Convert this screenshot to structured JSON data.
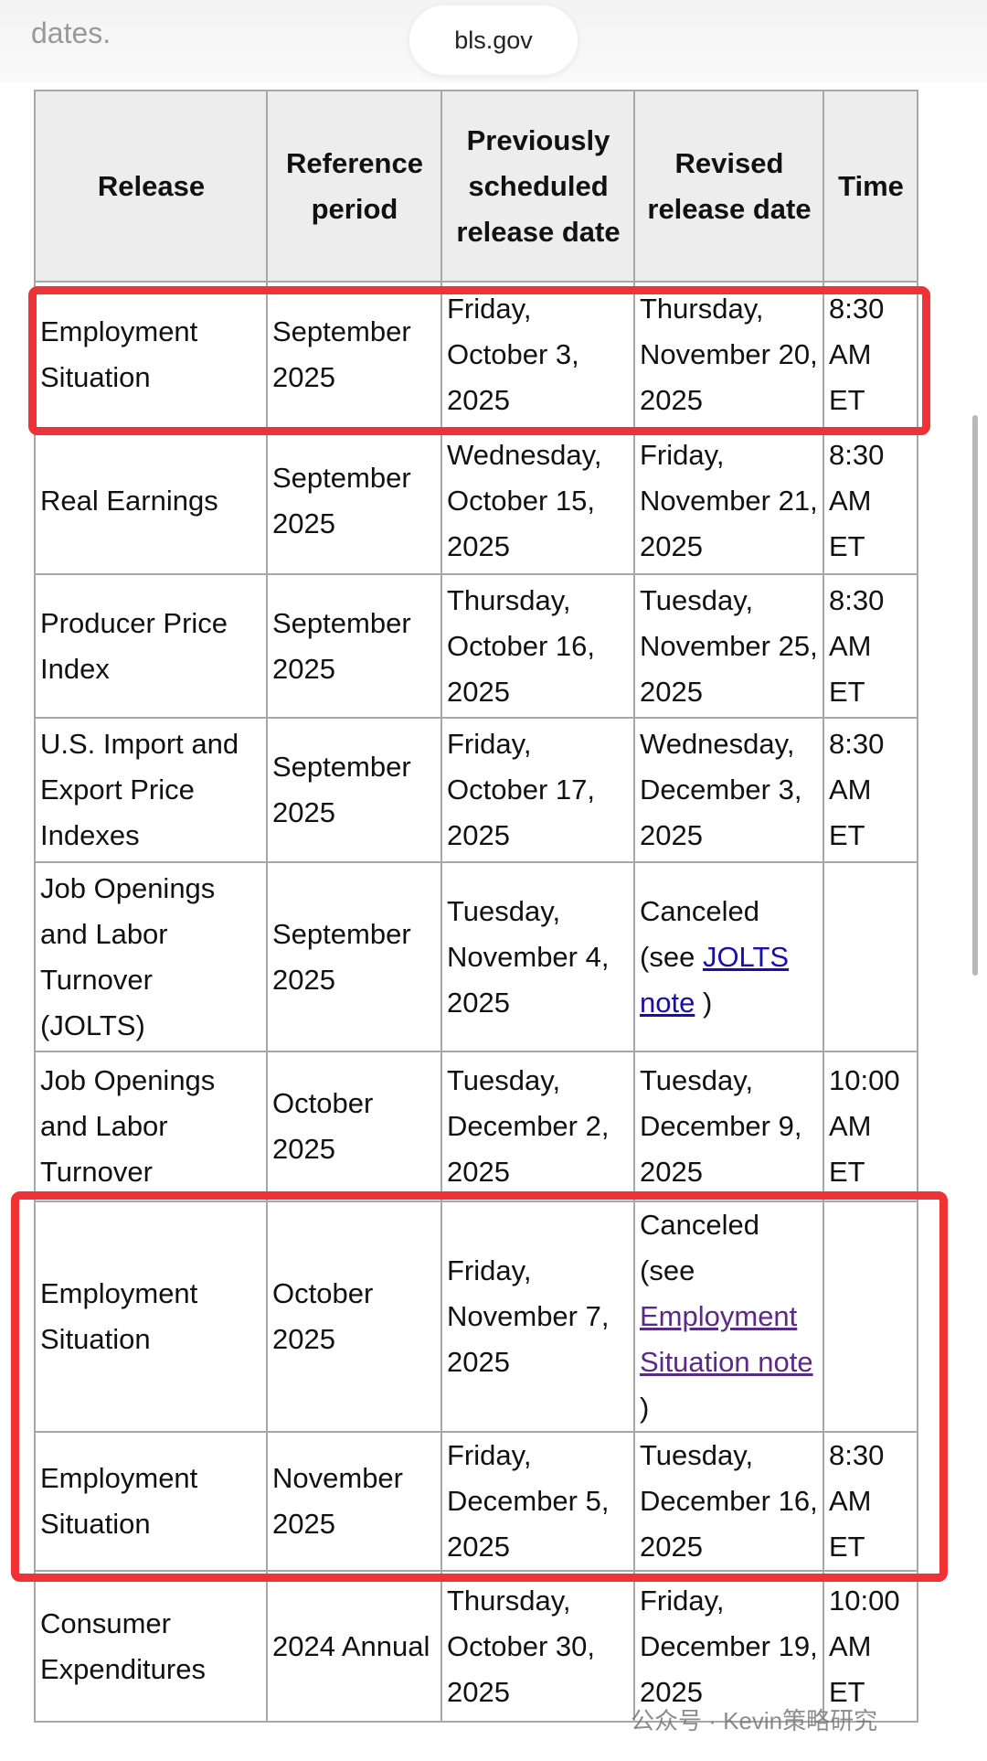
{
  "page": {
    "top_text": "dates.",
    "url": "bls.gov",
    "watermark": "公众号 · Kevin策略研究"
  },
  "table": {
    "headers": [
      "Release",
      "Reference period",
      "Previously scheduled release date",
      "Revised release date",
      "Time"
    ],
    "rows": [
      [
        "Employment Situation",
        "September 2025",
        "Friday, October 3, 2025",
        "Thursday, November 20, 2025",
        "8:30 AM ET"
      ],
      [
        "Real Earnings",
        "September 2025",
        "Wednesday, October 15, 2025",
        "Friday, November 21, 2025",
        "8:30 AM ET"
      ],
      [
        "Producer Price Index",
        "September 2025",
        "Thursday, October 16, 2025",
        "Tuesday, November 25, 2025",
        "8:30 AM ET"
      ],
      [
        "U.S. Import and Export Price Indexes",
        "September 2025",
        "Friday, October 17, 2025",
        "Wednesday, December 3, 2025",
        "8:30 AM ET"
      ],
      [
        "Job Openings and Labor Turnover (JOLTS)",
        "September 2025",
        "Tuesday, November 4, 2025",
        {
          "text": "Canceled (see",
          "link": "JOLTS note",
          "after": ")"
        },
        ""
      ],
      [
        "Job Openings and Labor Turnover",
        "October 2025",
        "Tuesday, December 2, 2025",
        "Tuesday, December 9, 2025",
        "10:00 AM ET"
      ],
      [
        "Employment Situation",
        "October 2025",
        "Friday, November 7, 2025",
        {
          "text": "Canceled (see",
          "link": "Employment Situation note",
          "after": ")"
        },
        ""
      ],
      [
        "Employment Situation",
        "November 2025",
        "Friday, December 5, 2025",
        "Tuesday, December 16, 2025",
        "8:30 AM ET"
      ],
      [
        "Consumer Expenditures",
        "2024 Annual",
        "Thursday, October 30, 2025",
        "Friday, December 19, 2025",
        "10:00 AM ET"
      ]
    ]
  }
}
